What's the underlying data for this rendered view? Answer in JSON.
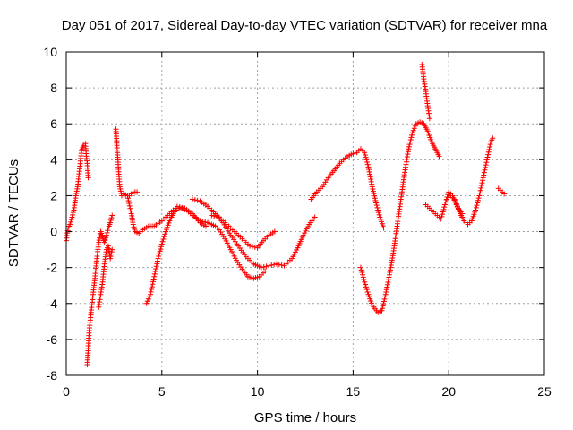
{
  "chart_data": {
    "type": "scatter",
    "title": "Day 051 of 2017, Sidereal Day-to-day VTEC variation (SDTVAR) for receiver mna",
    "xlabel": "GPS time / hours",
    "ylabel": "SDTVAR / TECUs",
    "xlim": [
      0,
      25
    ],
    "ylim": [
      -8,
      10
    ],
    "x_ticks": [
      0,
      5,
      10,
      15,
      20,
      25
    ],
    "y_ticks": [
      -8,
      -6,
      -4,
      -2,
      0,
      2,
      4,
      6,
      8,
      10
    ],
    "grid": true,
    "marker": "+",
    "color": "#ff0000",
    "series": [
      {
        "points": [
          [
            0.0,
            -0.5
          ],
          [
            0.1,
            0.2
          ],
          [
            0.2,
            0.4
          ],
          [
            0.3,
            0.8
          ],
          [
            0.4,
            1.2
          ],
          [
            0.5,
            2.0
          ],
          [
            0.6,
            2.5
          ],
          [
            0.7,
            3.5
          ],
          [
            0.8,
            4.5
          ],
          [
            0.9,
            4.8
          ],
          [
            1.0,
            4.9
          ],
          [
            1.05,
            4.2
          ],
          [
            1.1,
            3.8
          ],
          [
            1.15,
            3.0
          ]
        ]
      },
      {
        "points": [
          [
            1.1,
            -7.4
          ],
          [
            1.15,
            -6.5
          ],
          [
            1.2,
            -5.5
          ],
          [
            1.3,
            -4.5
          ],
          [
            1.4,
            -3.5
          ],
          [
            1.5,
            -2.6
          ],
          [
            1.6,
            -1.5
          ],
          [
            1.7,
            -0.6
          ],
          [
            1.8,
            0.0
          ],
          [
            1.9,
            -0.3
          ],
          [
            2.0,
            -0.6
          ],
          [
            2.1,
            -0.2
          ],
          [
            2.2,
            0.2
          ],
          [
            2.3,
            0.5
          ],
          [
            2.4,
            0.9
          ]
        ]
      },
      {
        "points": [
          [
            1.7,
            -4.2
          ],
          [
            1.8,
            -3.5
          ],
          [
            1.9,
            -2.8
          ],
          [
            2.0,
            -1.8
          ],
          [
            2.1,
            -1.0
          ],
          [
            2.2,
            -0.8
          ],
          [
            2.3,
            -1.5
          ],
          [
            2.4,
            -1.0
          ]
        ]
      },
      {
        "points": [
          [
            2.6,
            5.7
          ],
          [
            2.65,
            4.8
          ],
          [
            2.7,
            4.0
          ],
          [
            2.75,
            3.2
          ],
          [
            2.8,
            2.5
          ],
          [
            2.9,
            2.0
          ],
          [
            3.0,
            2.1
          ],
          [
            3.2,
            2.0
          ],
          [
            3.4,
            1.0
          ],
          [
            3.5,
            0.4
          ],
          [
            3.6,
            0.0
          ],
          [
            3.8,
            -0.1
          ],
          [
            4.0,
            0.1
          ],
          [
            4.3,
            0.3
          ],
          [
            4.6,
            0.3
          ],
          [
            5.0,
            0.6
          ],
          [
            5.4,
            1.0
          ],
          [
            5.8,
            1.4
          ],
          [
            6.2,
            1.3
          ],
          [
            6.6,
            1.0
          ],
          [
            7.0,
            0.5
          ],
          [
            7.3,
            0.3
          ]
        ]
      },
      {
        "points": [
          [
            3.3,
            2.0
          ],
          [
            3.5,
            2.2
          ],
          [
            3.7,
            2.2
          ]
        ]
      },
      {
        "points": [
          [
            4.2,
            -4.0
          ],
          [
            4.4,
            -3.5
          ],
          [
            4.6,
            -2.5
          ],
          [
            4.8,
            -1.5
          ],
          [
            5.0,
            -0.7
          ],
          [
            5.2,
            0.0
          ],
          [
            5.4,
            0.6
          ],
          [
            5.6,
            1.0
          ],
          [
            5.8,
            1.3
          ],
          [
            6.0,
            1.3
          ],
          [
            6.3,
            1.2
          ],
          [
            6.6,
            0.9
          ],
          [
            7.0,
            0.6
          ],
          [
            7.4,
            0.5
          ],
          [
            7.8,
            0.3
          ],
          [
            8.0,
            0.1
          ],
          [
            8.3,
            -0.4
          ],
          [
            8.6,
            -1.0
          ],
          [
            8.9,
            -1.6
          ],
          [
            9.2,
            -2.1
          ],
          [
            9.5,
            -2.5
          ],
          [
            9.8,
            -2.6
          ],
          [
            10.1,
            -2.5
          ],
          [
            10.4,
            -2.2
          ]
        ]
      },
      {
        "points": [
          [
            6.6,
            1.8
          ],
          [
            7.0,
            1.7
          ],
          [
            7.4,
            1.4
          ],
          [
            7.8,
            1.0
          ],
          [
            8.2,
            0.5
          ],
          [
            8.6,
            -0.2
          ],
          [
            9.0,
            -0.8
          ],
          [
            9.4,
            -1.4
          ],
          [
            9.8,
            -1.8
          ],
          [
            10.2,
            -2.0
          ],
          [
            10.6,
            -1.9
          ],
          [
            11.0,
            -1.8
          ],
          [
            11.4,
            -1.9
          ],
          [
            11.8,
            -1.5
          ],
          [
            12.1,
            -0.9
          ],
          [
            12.4,
            -0.2
          ],
          [
            12.7,
            0.4
          ],
          [
            13.0,
            0.8
          ]
        ]
      },
      {
        "points": [
          [
            7.6,
            0.9
          ],
          [
            8.0,
            0.8
          ],
          [
            8.4,
            0.4
          ],
          [
            8.8,
            0.0
          ],
          [
            9.2,
            -0.4
          ],
          [
            9.6,
            -0.8
          ],
          [
            10.0,
            -0.9
          ],
          [
            10.3,
            -0.5
          ],
          [
            10.6,
            -0.2
          ],
          [
            10.9,
            0.0
          ]
        ]
      },
      {
        "points": [
          [
            12.8,
            1.8
          ],
          [
            13.1,
            2.2
          ],
          [
            13.4,
            2.5
          ],
          [
            13.7,
            3.0
          ],
          [
            14.0,
            3.4
          ],
          [
            14.3,
            3.8
          ],
          [
            14.6,
            4.1
          ],
          [
            14.9,
            4.3
          ],
          [
            15.2,
            4.4
          ],
          [
            15.4,
            4.6
          ],
          [
            15.6,
            4.4
          ],
          [
            15.8,
            3.6
          ],
          [
            16.0,
            2.5
          ],
          [
            16.2,
            1.6
          ],
          [
            16.4,
            0.8
          ],
          [
            16.6,
            0.2
          ]
        ]
      },
      {
        "points": [
          [
            15.4,
            -2.0
          ],
          [
            15.6,
            -2.8
          ],
          [
            15.8,
            -3.5
          ],
          [
            16.0,
            -4.1
          ],
          [
            16.3,
            -4.5
          ],
          [
            16.5,
            -4.4
          ],
          [
            16.7,
            -3.5
          ],
          [
            16.9,
            -2.4
          ],
          [
            17.1,
            -1.2
          ],
          [
            17.3,
            0.3
          ],
          [
            17.5,
            1.8
          ],
          [
            17.7,
            3.3
          ],
          [
            17.9,
            4.6
          ],
          [
            18.1,
            5.5
          ],
          [
            18.3,
            6.0
          ],
          [
            18.5,
            6.1
          ],
          [
            18.7,
            6.0
          ],
          [
            18.9,
            5.6
          ],
          [
            19.1,
            5.0
          ],
          [
            19.3,
            4.6
          ],
          [
            19.5,
            4.2
          ]
        ]
      },
      {
        "points": [
          [
            18.6,
            9.3
          ],
          [
            18.7,
            8.5
          ],
          [
            18.8,
            7.8
          ],
          [
            18.9,
            7.0
          ],
          [
            19.0,
            6.3
          ]
        ]
      },
      {
        "points": [
          [
            18.8,
            1.5
          ],
          [
            19.0,
            1.3
          ],
          [
            19.3,
            1.0
          ],
          [
            19.6,
            0.7
          ],
          [
            19.8,
            1.5
          ],
          [
            20.0,
            2.2
          ],
          [
            20.2,
            2.0
          ],
          [
            20.4,
            1.5
          ],
          [
            20.6,
            1.0
          ],
          [
            20.8,
            0.6
          ],
          [
            21.0,
            0.4
          ],
          [
            21.2,
            0.6
          ],
          [
            21.4,
            1.2
          ],
          [
            21.6,
            2.0
          ],
          [
            21.8,
            3.0
          ],
          [
            22.0,
            4.0
          ],
          [
            22.2,
            5.0
          ],
          [
            22.3,
            5.2
          ]
        ]
      },
      {
        "points": [
          [
            19.9,
            1.8
          ],
          [
            20.1,
            2.0
          ],
          [
            20.3,
            1.8
          ],
          [
            20.5,
            1.3
          ],
          [
            20.7,
            1.0
          ]
        ]
      },
      {
        "points": [
          [
            22.6,
            2.4
          ],
          [
            22.8,
            2.2
          ],
          [
            22.9,
            2.1
          ]
        ]
      }
    ]
  }
}
